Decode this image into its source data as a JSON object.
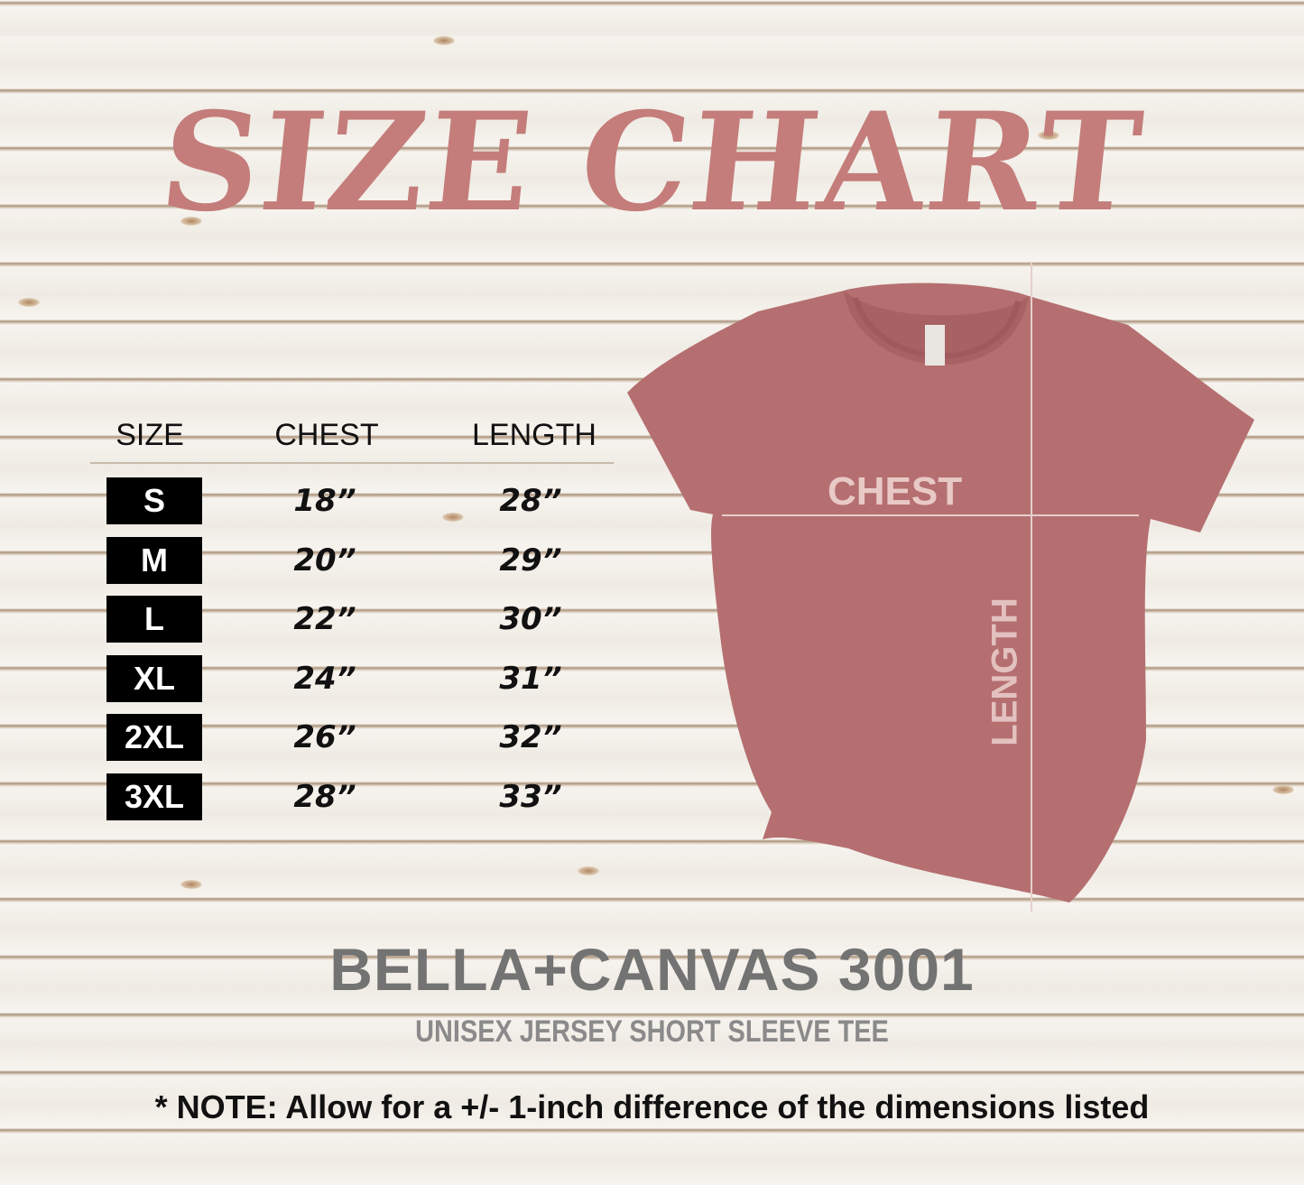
{
  "title": "SIZE CHART",
  "table": {
    "headers": [
      "SIZE",
      "CHEST",
      "LENGTH"
    ],
    "rows": [
      {
        "size": "S",
        "chest": "18”",
        "length": "28”"
      },
      {
        "size": "M",
        "chest": "20”",
        "length": "29”"
      },
      {
        "size": "L",
        "chest": "22”",
        "length": "30”"
      },
      {
        "size": "XL",
        "chest": "24”",
        "length": "31”"
      },
      {
        "size": "2XL",
        "chest": "26”",
        "length": "32”"
      },
      {
        "size": "3XL",
        "chest": "28”",
        "length": "33”"
      }
    ]
  },
  "diagram": {
    "chest_label": "CHEST",
    "length_label": "LENGTH",
    "shirt_color": "#b56f70"
  },
  "product": {
    "name": "BELLA+CANVAS 3001",
    "description": "UNISEX JERSEY SHORT SLEEVE TEE"
  },
  "note": "* NOTE: Allow for a +/- 1-inch difference of the dimensions listed",
  "colors": {
    "title": "#c47d7a",
    "size_box": "#000000"
  }
}
